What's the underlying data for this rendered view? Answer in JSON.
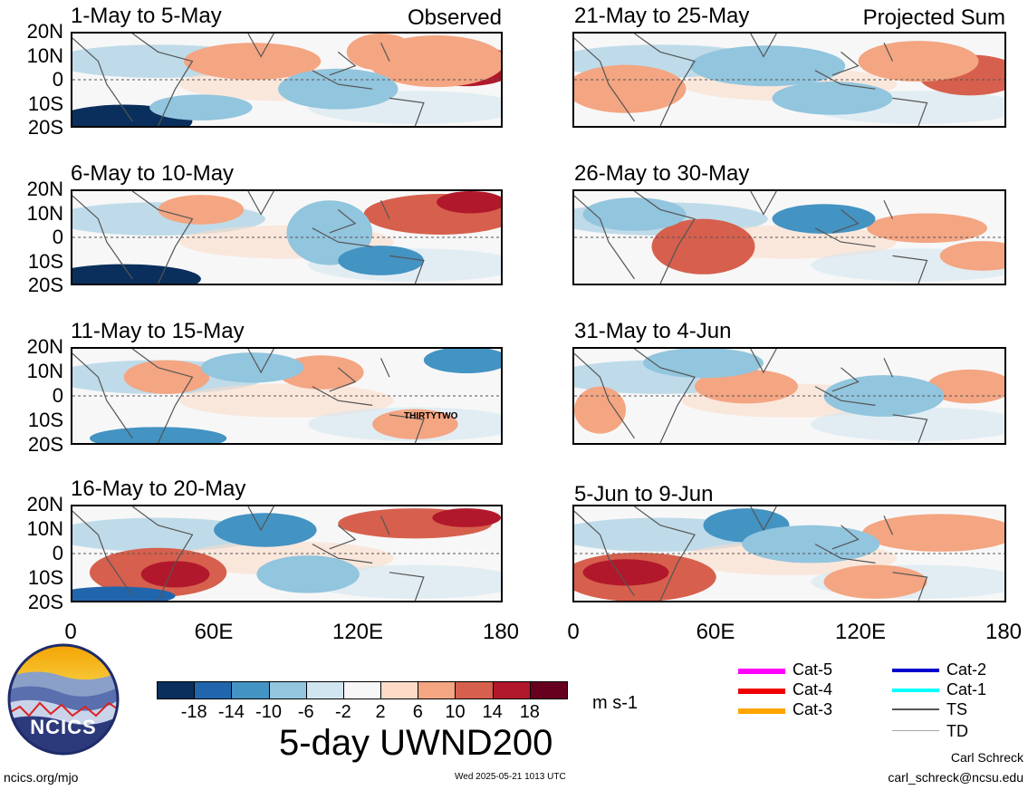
{
  "observed_label": "Observed",
  "projected_label": "Projected Sum",
  "panels": [
    {
      "title": "1-May to 5-May"
    },
    {
      "title": "6-May to 10-May"
    },
    {
      "title": "11-May to 15-May",
      "storm_label": "THIRTYTWO"
    },
    {
      "title": "16-May to 20-May"
    },
    {
      "title": "21-May to 25-May"
    },
    {
      "title": "26-May to 30-May"
    },
    {
      "title": "31-May to 4-Jun"
    },
    {
      "title": "5-Jun to 9-Jun"
    }
  ],
  "lat_labels": [
    "20N",
    "10N",
    "0",
    "10S",
    "20S"
  ],
  "lon_labels": [
    "0",
    "60E",
    "120E",
    "180"
  ],
  "colorbar": {
    "ticks": [
      "-18",
      "-14",
      "-10",
      "-6",
      "-2",
      "2",
      "6",
      "10",
      "14",
      "18"
    ],
    "colors": [
      "#0a2f5c",
      "#2166ac",
      "#4393c3",
      "#92c5de",
      "#d1e5f0",
      "#f7f7f7",
      "#fddbc7",
      "#f4a582",
      "#d6604d",
      "#b2182b",
      "#67001f"
    ],
    "units": "m s-1",
    "title": "5-day UWND200"
  },
  "storm_legend": [
    {
      "label": "Cat-5",
      "color": "#ff00ff"
    },
    {
      "label": "Cat-4",
      "color": "#ee0000"
    },
    {
      "label": "Cat-3",
      "color": "#ffa500"
    },
    {
      "label": "Cat-2",
      "color": "#0000cc"
    },
    {
      "label": "Cat-1",
      "color": "#00ffff"
    },
    {
      "label": "TS",
      "color": "#555555"
    },
    {
      "label": "TD",
      "color": "#aaaaaa"
    }
  ],
  "logo_text": "NCICS",
  "footer": {
    "website": "ncics.org/mjo",
    "timestamp": "Wed 2025-05-21 1013 UTC",
    "author": "Carl Schreck",
    "email": "carl_schreck@ncsu.edu"
  }
}
